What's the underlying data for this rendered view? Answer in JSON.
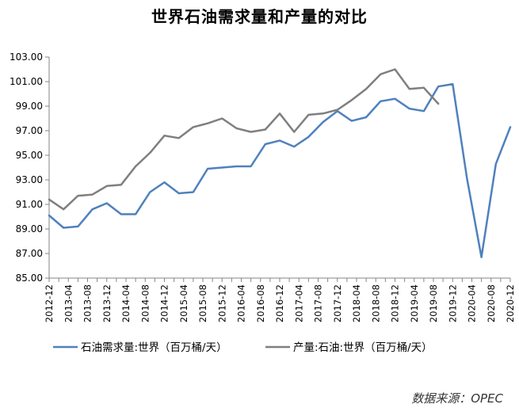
{
  "chart_data": {
    "type": "line",
    "title": "世界石油需求量和产量的对比",
    "source": "数据来源：OPEC",
    "xlabel": "",
    "ylabel": "",
    "ylim": [
      85,
      103
    ],
    "yticks": [
      "85.00",
      "87.00",
      "89.00",
      "91.00",
      "93.00",
      "95.00",
      "97.00",
      "99.00",
      "101.00",
      "103.00"
    ],
    "categories": [
      "2012-12",
      "2013-02",
      "2013-04",
      "2013-06",
      "2013-08",
      "2013-10",
      "2013-12",
      "2014-02",
      "2014-04",
      "2014-06",
      "2014-08",
      "2014-10",
      "2014-12",
      "2015-02",
      "2015-04",
      "2015-06",
      "2015-08",
      "2015-10",
      "2015-12",
      "2016-02",
      "2016-04",
      "2016-06",
      "2016-08",
      "2016-10",
      "2016-12",
      "2017-02",
      "2017-04",
      "2017-06",
      "2017-08",
      "2017-10",
      "2017-12",
      "2018-02",
      "2018-04",
      "2018-06",
      "2018-08",
      "2018-10",
      "2018-12",
      "2019-02",
      "2019-04",
      "2019-06",
      "2019-08",
      "2019-10",
      "2019-12",
      "2020-02",
      "2020-04",
      "2020-06",
      "2020-08",
      "2020-10",
      "2020-12"
    ],
    "x_tick_labels": [
      "2012-12",
      "2013-04",
      "2013-08",
      "2013-12",
      "2014-04",
      "2014-08",
      "2014-12",
      "2015-04",
      "2015-08",
      "2015-12",
      "2016-04",
      "2016-08",
      "2016-12",
      "2017-04",
      "2017-08",
      "2017-12",
      "2018-04",
      "2018-08",
      "2018-12",
      "2019-04",
      "2019-08",
      "2019-12",
      "2020-04",
      "2020-08",
      "2020-12"
    ],
    "grid": false,
    "legend_position": "bottom",
    "series": [
      {
        "name": "石油需求量:世界（百万桶/天）",
        "color": "#4f81bd",
        "points": [
          [
            "2012-12",
            90.1
          ],
          [
            "2013-03",
            89.1
          ],
          [
            "2013-06",
            89.2
          ],
          [
            "2013-09",
            90.6
          ],
          [
            "2013-12",
            91.1
          ],
          [
            "2014-03",
            90.2
          ],
          [
            "2014-06",
            90.2
          ],
          [
            "2014-09",
            92.0
          ],
          [
            "2014-12",
            92.8
          ],
          [
            "2015-03",
            91.9
          ],
          [
            "2015-06",
            92.0
          ],
          [
            "2015-09",
            93.9
          ],
          [
            "2015-12",
            94.0
          ],
          [
            "2016-03",
            94.1
          ],
          [
            "2016-06",
            94.1
          ],
          [
            "2016-09",
            95.9
          ],
          [
            "2016-12",
            96.2
          ],
          [
            "2017-03",
            95.7
          ],
          [
            "2017-06",
            96.5
          ],
          [
            "2017-09",
            97.7
          ],
          [
            "2017-12",
            98.6
          ],
          [
            "2018-03",
            97.8
          ],
          [
            "2018-06",
            98.1
          ],
          [
            "2018-09",
            99.4
          ],
          [
            "2018-12",
            99.6
          ],
          [
            "2019-03",
            98.8
          ],
          [
            "2019-06",
            98.6
          ],
          [
            "2019-09",
            100.6
          ],
          [
            "2019-12",
            100.8
          ],
          [
            "2020-03",
            93.1
          ],
          [
            "2020-06",
            86.7
          ],
          [
            "2020-09",
            94.3
          ],
          [
            "2020-12",
            97.3
          ]
        ]
      },
      {
        "name": "产量:石油:世界（百万桶/天）",
        "color": "#7f7f7f",
        "points": [
          [
            "2012-12",
            91.4
          ],
          [
            "2013-03",
            90.6
          ],
          [
            "2013-06",
            91.7
          ],
          [
            "2013-09",
            91.8
          ],
          [
            "2013-12",
            92.5
          ],
          [
            "2014-03",
            92.6
          ],
          [
            "2014-06",
            94.1
          ],
          [
            "2014-09",
            95.2
          ],
          [
            "2014-12",
            96.6
          ],
          [
            "2015-03",
            96.4
          ],
          [
            "2015-06",
            97.3
          ],
          [
            "2015-09",
            97.6
          ],
          [
            "2015-12",
            98.0
          ],
          [
            "2016-03",
            97.2
          ],
          [
            "2016-06",
            96.9
          ],
          [
            "2016-09",
            97.1
          ],
          [
            "2016-12",
            98.4
          ],
          [
            "2017-03",
            96.9
          ],
          [
            "2017-06",
            98.3
          ],
          [
            "2017-09",
            98.4
          ],
          [
            "2017-12",
            98.7
          ],
          [
            "2018-03",
            99.5
          ],
          [
            "2018-06",
            100.4
          ],
          [
            "2018-09",
            101.6
          ],
          [
            "2018-12",
            102.0
          ],
          [
            "2019-03",
            100.4
          ],
          [
            "2019-06",
            100.5
          ],
          [
            "2019-09",
            99.2
          ]
        ]
      }
    ]
  }
}
